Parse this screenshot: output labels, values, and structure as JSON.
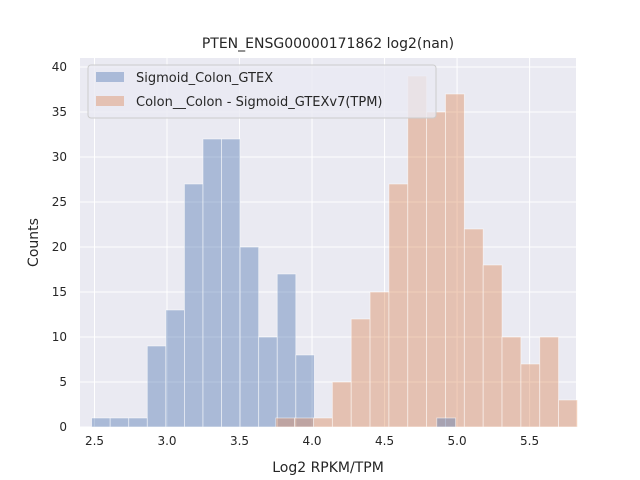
{
  "chart_data": {
    "type": "bar",
    "title": "PTEN_ENSG00000171862 log2(nan)",
    "xlabel": "Log2 RPKM/TPM",
    "ylabel": "Counts",
    "xlim": [
      2.4,
      5.82
    ],
    "ylim": [
      0,
      41
    ],
    "x_ticks": [
      2.5,
      3.0,
      3.5,
      4.0,
      4.5,
      5.0,
      5.5
    ],
    "x_tick_labels": [
      "2.5",
      "3.0",
      "3.5",
      "4.0",
      "4.5",
      "5.0",
      "5.5"
    ],
    "y_ticks": [
      0,
      5,
      10,
      15,
      20,
      25,
      30,
      35,
      40
    ],
    "y_tick_labels": [
      "0",
      "5",
      "10",
      "15",
      "20",
      "25",
      "30",
      "35",
      "40"
    ],
    "grid": true,
    "legend_position": "top-left",
    "series": [
      {
        "name": "Sigmoid_Colon_GTEX",
        "color": "#4c72b0",
        "opacity": 0.4,
        "bin_start": 2.48,
        "bin_width": 0.128,
        "values": [
          1,
          1,
          1,
          9,
          13,
          27,
          32,
          32,
          20,
          10,
          17,
          8
        ]
      },
      {
        "name": "Colon__Colon - Sigmoid_GTEXv7(TPM)",
        "color": "#dd8452",
        "opacity": 0.4,
        "bin_start": 3.75,
        "bin_width": 0.13,
        "values": [
          1,
          1,
          1,
          5,
          12,
          15,
          27,
          39,
          35,
          37,
          22,
          18,
          10,
          7,
          10,
          3
        ]
      }
    ],
    "extra_bars": [
      {
        "series": 0,
        "x0": 4.86,
        "x1": 4.99,
        "value": 1
      }
    ]
  }
}
